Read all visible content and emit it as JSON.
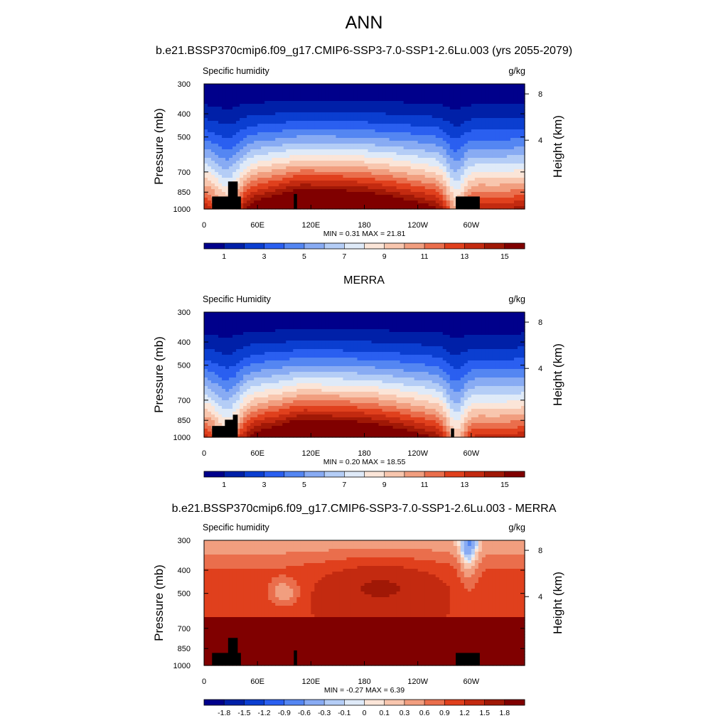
{
  "main_title": "ANN",
  "chart_data": [
    {
      "type": "contour",
      "panel_title": "b.e21.BSSP370cmip6.f09_g17.CMIP6-SSP3-7.0-SSP1-2.6Lu.003 (yrs 2055-2079)",
      "variable_label": "Specific humidity",
      "units_label": "g/kg",
      "ylabel": "Pressure (mb)",
      "y2label": "Height (km)",
      "y_ticks": [
        "300",
        "400",
        "500",
        "700",
        "850",
        "1000"
      ],
      "y2_ticks": [
        "8",
        "4"
      ],
      "x_ticks": [
        "0",
        "60E",
        "120E",
        "180",
        "120W",
        "60W"
      ],
      "stats": "MIN =   0.31  MAX =  21.81",
      "min": 0.31,
      "max": 21.81,
      "colorbar_labels": [
        "1",
        "3",
        "5",
        "7",
        "9",
        "11",
        "13",
        "15"
      ],
      "colorbar_levels": [
        1,
        2,
        3,
        4,
        5,
        6,
        7,
        8,
        9,
        10,
        11,
        12,
        13,
        14,
        15
      ]
    },
    {
      "type": "contour",
      "panel_title": "MERRA",
      "variable_label": "Specific Humidity",
      "units_label": "g/kg",
      "ylabel": "Pressure (mb)",
      "y2label": "Height (km)",
      "y_ticks": [
        "300",
        "400",
        "500",
        "700",
        "850",
        "1000"
      ],
      "y2_ticks": [
        "8",
        "4"
      ],
      "x_ticks": [
        "0",
        "60E",
        "120E",
        "180",
        "120W",
        "60W"
      ],
      "stats": "MIN =   0.20  MAX =  18.55",
      "min": 0.2,
      "max": 18.55,
      "colorbar_labels": [
        "1",
        "3",
        "5",
        "7",
        "9",
        "11",
        "13",
        "15"
      ],
      "colorbar_levels": [
        1,
        2,
        3,
        4,
        5,
        6,
        7,
        8,
        9,
        10,
        11,
        12,
        13,
        14,
        15
      ]
    },
    {
      "type": "contour",
      "panel_title": "b.e21.BSSP370cmip6.f09_g17.CMIP6-SSP3-7.0-SSP1-2.6Lu.003 - MERRA",
      "variable_label": "Specific humidity",
      "units_label": "g/kg",
      "ylabel": "Pressure (mb)",
      "y2label": "Height (km)",
      "y_ticks": [
        "300",
        "400",
        "500",
        "700",
        "850",
        "1000"
      ],
      "y2_ticks": [
        "8",
        "4"
      ],
      "x_ticks": [
        "0",
        "60E",
        "120E",
        "180",
        "120W",
        "60W"
      ],
      "stats": "MIN =  -0.27  MAX =   6.39",
      "min": -0.27,
      "max": 6.39,
      "colorbar_labels": [
        "-1.8",
        "-1.5",
        "-1.2",
        "-0.9",
        "-0.6",
        "-0.3",
        "-0.1",
        "0",
        "0.1",
        "0.3",
        "0.6",
        "0.9",
        "1.2",
        "1.5",
        "1.8"
      ],
      "colorbar_levels": [
        -1.8,
        -1.5,
        -1.2,
        -0.9,
        -0.6,
        -0.3,
        -0.1,
        0,
        0.1,
        0.3,
        0.6,
        0.9,
        1.2,
        1.5,
        1.8
      ]
    }
  ],
  "colormap": [
    "#00008b",
    "#0020a8",
    "#0b3ed0",
    "#2a5ff0",
    "#5486f2",
    "#88abf3",
    "#b4cdf6",
    "#dfeaf8",
    "#fbe5d8",
    "#f8c6ae",
    "#f19e7f",
    "#ea6e4c",
    "#e0401d",
    "#c32a10",
    "#a01806",
    "#800000"
  ],
  "land_color": "#000000"
}
